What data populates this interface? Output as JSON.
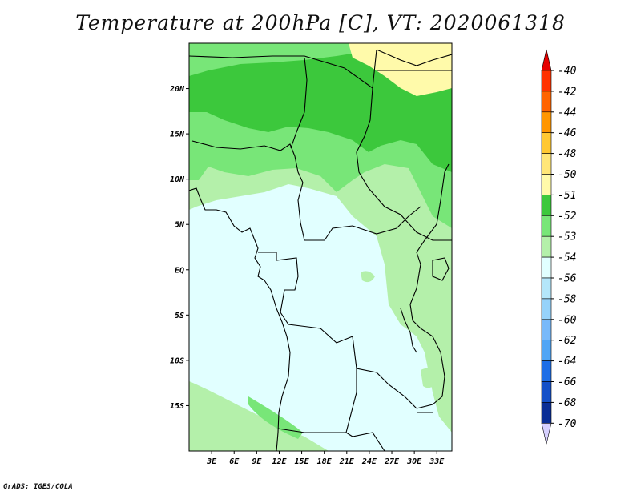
{
  "title": "Temperature at 200hPa [C], VT: 2020061318",
  "credit": "GrADS: IGES/COLA",
  "map": {
    "lon_range": [
      0,
      35
    ],
    "lat_range": [
      -20,
      25
    ],
    "lat_labels": [
      "20N",
      "15N",
      "10N",
      "5N",
      "EQ",
      "5S",
      "10S",
      "15S"
    ],
    "lat_values": [
      20,
      15,
      10,
      5,
      0,
      -5,
      -10,
      -15
    ],
    "lon_labels": [
      "3E",
      "6E",
      "9E",
      "12E",
      "15E",
      "18E",
      "21E",
      "24E",
      "27E",
      "30E",
      "33E"
    ],
    "lon_values": [
      3,
      6,
      9,
      12,
      15,
      18,
      21,
      24,
      27,
      30,
      33
    ],
    "colors": {
      "below_-54": "#e1ffff",
      "-54_to_-53": "#b4f0aa",
      "-53_to_-52": "#78e678",
      "-52_to_-51": "#3cc83c",
      "-51_to_-50": "#fffaaa"
    }
  },
  "colorbar": {
    "labels": [
      "-40",
      "-42",
      "-44",
      "-46",
      "-48",
      "-50",
      "-51",
      "-52",
      "-53",
      "-54",
      "-56",
      "-58",
      "-60",
      "-62",
      "-64",
      "-66",
      "-68",
      "-70"
    ],
    "colors": [
      "#ff3200",
      "#ff6400",
      "#ff9600",
      "#ffc832",
      "#ffe678",
      "#fffaaa",
      "#3cc83c",
      "#78e678",
      "#b4f0aa",
      "#e1ffff",
      "#b4e6fa",
      "#96d2fa",
      "#78b9fa",
      "#50a5f5",
      "#1e6ee6",
      "#1450c8",
      "#0a2e96",
      "#000082"
    ],
    "top_arrow_color": "#e60000",
    "bottom_arrow_color": "#d6d0ff"
  }
}
